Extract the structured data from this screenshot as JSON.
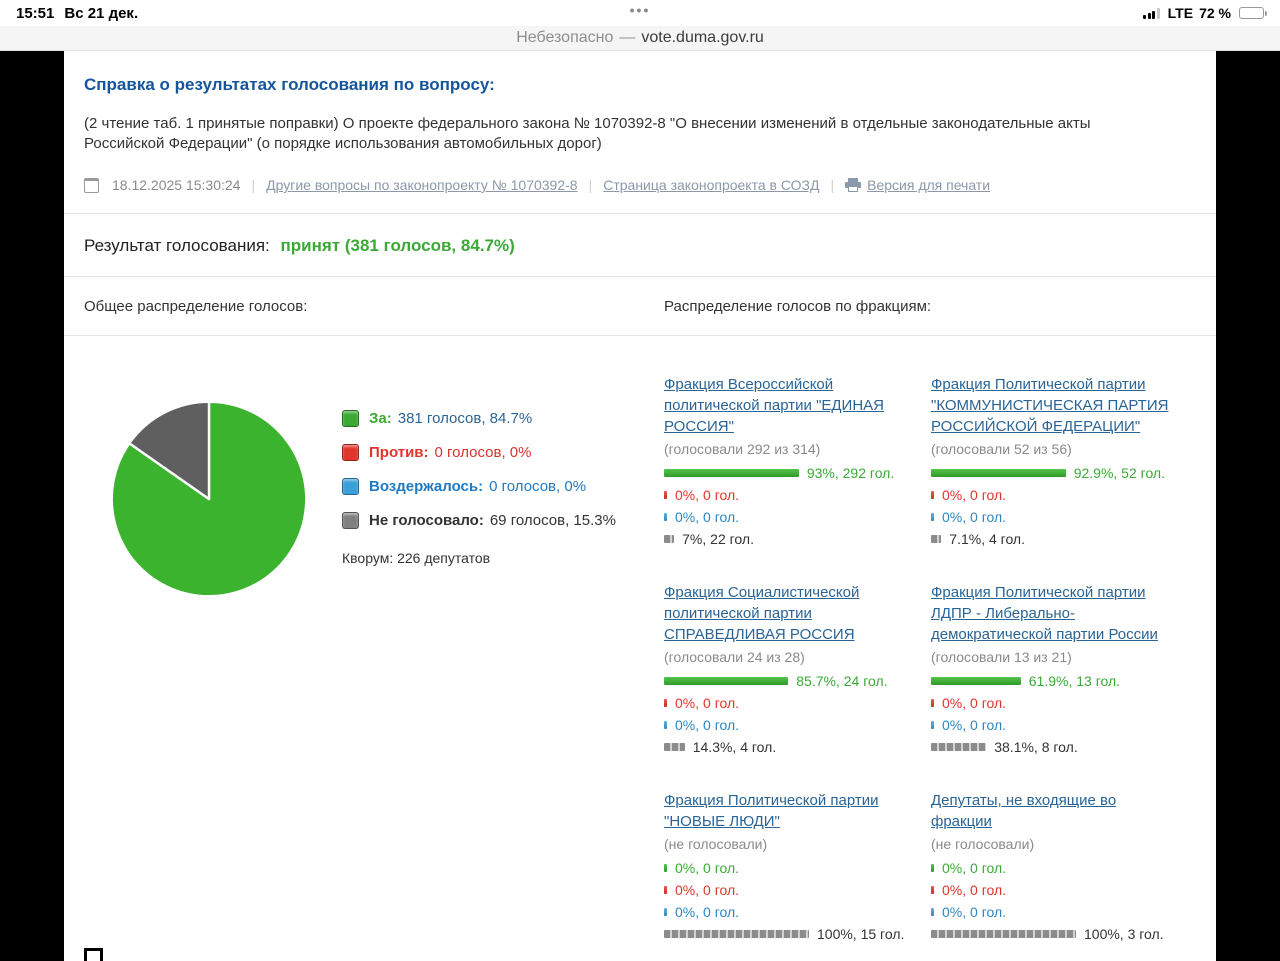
{
  "status": {
    "time": "15:51",
    "date": "Вс 21 дек.",
    "handle": "•••",
    "network": "LTE",
    "battery": "72 %"
  },
  "browser": {
    "security_label": "Небезопасно",
    "separator": "—",
    "domain": "vote.duma.gov.ru"
  },
  "page": {
    "title": "Справка о результатах голосования по вопросу:",
    "question": "(2 чтение таб. 1 принятые поправки) О проекте федерального закона № 1070392-8 \"О внесении изменений в отдельные законодательные акты Российской Федерации\" (о порядке использования автомобильных дорог)",
    "meta": {
      "datetime": "18.12.2025 15:30:24",
      "links": [
        {
          "label": "Другие вопросы по законопроекту № 1070392-8"
        },
        {
          "label": "Страница законопроекта в СОЗД"
        },
        {
          "label": "Версия для печати"
        }
      ]
    },
    "result": {
      "label": "Результат голосования:",
      "value": "принят (381 голосов, 84.7%)"
    },
    "overall": {
      "heading": "Общее распределение голосов:",
      "legend": [
        {
          "label": "За:",
          "value": "381 голосов, 84.7%",
          "swatch": "#3aaa35",
          "label_color": "#3aaa35",
          "value_color": "#2a6496"
        },
        {
          "label": "Против:",
          "value": "0 голосов, 0%",
          "swatch": "#e0352b",
          "label_color": "#e0352b",
          "value_color": "#d9342b"
        },
        {
          "label": "Воздержалось:",
          "value": "0 голосов, 0%",
          "swatch": "#3b9fd8",
          "label_color": "#1f7ac4",
          "value_color": "#1f7ac4"
        },
        {
          "label": "Не голосовало:",
          "value": "69 голосов, 15.3%",
          "swatch": "#808080",
          "label_color": "#333333",
          "value_color": "#333333"
        }
      ],
      "quorum": "Кворум: 226 депутатов"
    },
    "fractions": {
      "heading": "Распределение голосов по фракциям:",
      "items": [
        {
          "name": "Фракция Всероссийской политической партии \"ЕДИНАЯ РОССИЯ\"",
          "turnout": "(голосовали 292 из 314)",
          "bars": [
            {
              "type": "for",
              "pct": 93,
              "label": "93%, 292 гол."
            },
            {
              "type": "against",
              "pct": 0,
              "label": "0%, 0 гол."
            },
            {
              "type": "abstain",
              "pct": 0,
              "label": "0%, 0 гол."
            },
            {
              "type": "novote",
              "pct": 7,
              "label": "7%, 22 гол."
            }
          ]
        },
        {
          "name": "Фракция Политической партии \"КОММУНИСТИЧЕСКАЯ ПАРТИЯ РОССИЙСКОЙ ФЕДЕРАЦИИ\"",
          "turnout": "(голосовали 52 из 56)",
          "bars": [
            {
              "type": "for",
              "pct": 92.9,
              "label": "92.9%, 52 гол."
            },
            {
              "type": "against",
              "pct": 0,
              "label": "0%, 0 гол."
            },
            {
              "type": "abstain",
              "pct": 0,
              "label": "0%, 0 гол."
            },
            {
              "type": "novote",
              "pct": 7.1,
              "label": "7.1%, 4 гол."
            }
          ]
        },
        {
          "name": "Фракция Социалистической политической партии СПРАВЕДЛИВАЯ РОССИЯ",
          "turnout": "(голосовали 24 из 28)",
          "bars": [
            {
              "type": "for",
              "pct": 85.7,
              "label": "85.7%, 24 гол."
            },
            {
              "type": "against",
              "pct": 0,
              "label": "0%, 0 гол."
            },
            {
              "type": "abstain",
              "pct": 0,
              "label": "0%, 0 гол."
            },
            {
              "type": "novote",
              "pct": 14.3,
              "label": "14.3%, 4 гол."
            }
          ]
        },
        {
          "name": "Фракция Политической партии ЛДПР - Либерально-демократической партии России",
          "turnout": "(голосовали 13 из 21)",
          "bars": [
            {
              "type": "for",
              "pct": 61.9,
              "label": "61.9%, 13 гол."
            },
            {
              "type": "against",
              "pct": 0,
              "label": "0%, 0 гол."
            },
            {
              "type": "abstain",
              "pct": 0,
              "label": "0%, 0 гол."
            },
            {
              "type": "novote",
              "pct": 38.1,
              "label": "38.1%, 8 гол."
            }
          ]
        },
        {
          "name": "Фракция Политической партии \"НОВЫЕ ЛЮДИ\"",
          "turnout": "(не голосовали)",
          "bars": [
            {
              "type": "for",
              "pct": 0,
              "label": "0%, 0 гол."
            },
            {
              "type": "against",
              "pct": 0,
              "label": "0%, 0 гол."
            },
            {
              "type": "abstain",
              "pct": 0,
              "label": "0%, 0 гол."
            },
            {
              "type": "novote",
              "pct": 100,
              "label": "100%, 15 гол."
            }
          ]
        },
        {
          "name": "Депутаты, не входящие во фракции",
          "turnout": "(не голосовали)",
          "bars": [
            {
              "type": "for",
              "pct": 0,
              "label": "0%, 0 гол."
            },
            {
              "type": "against",
              "pct": 0,
              "label": "0%, 0 гол."
            },
            {
              "type": "abstain",
              "pct": 0,
              "label": "0%, 0 гол."
            },
            {
              "type": "novote",
              "pct": 100,
              "label": "100%, 3 гол."
            }
          ]
        }
      ]
    }
  },
  "chart_data": [
    {
      "type": "pie",
      "title": "Общее распределение голосов",
      "labels": [
        "За",
        "Против",
        "Воздержалось",
        "Не голосовало"
      ],
      "values_pct": [
        84.7,
        0,
        0,
        15.3
      ],
      "values_votes": [
        381,
        0,
        0,
        69
      ],
      "colors": [
        "#3aaa35",
        "#e0352b",
        "#3b9fd8",
        "#6e6e6e"
      ],
      "quorum": 226
    },
    {
      "type": "bar",
      "title": "Распределение голосов по фракциям",
      "categories": [
        "Фракция Всероссийской политической партии \"ЕДИНАЯ РОССИЯ\"",
        "Фракция Политической партии \"КОММУНИСТИЧЕСКАЯ ПАРТИЯ РОССИЙСКОЙ ФЕДЕРАЦИИ\"",
        "Фракция Социалистической политической партии СПРАВЕДЛИВАЯ РОССИЯ",
        "Фракция Политической партии ЛДПР - Либерально-демократической партии России",
        "Фракция Политической партии \"НОВЫЕ ЛЮДИ\"",
        "Депутаты, не входящие во фракции"
      ],
      "series": [
        {
          "name": "За",
          "values_pct": [
            93,
            92.9,
            85.7,
            61.9,
            0,
            0
          ],
          "values_votes": [
            292,
            52,
            24,
            13,
            0,
            0
          ]
        },
        {
          "name": "Против",
          "values_pct": [
            0,
            0,
            0,
            0,
            0,
            0
          ],
          "values_votes": [
            0,
            0,
            0,
            0,
            0,
            0
          ]
        },
        {
          "name": "Воздержалось",
          "values_pct": [
            0,
            0,
            0,
            0,
            0,
            0
          ],
          "values_votes": [
            0,
            0,
            0,
            0,
            0,
            0
          ]
        },
        {
          "name": "Не голосовало",
          "values_pct": [
            7,
            7.1,
            14.3,
            38.1,
            100,
            100
          ],
          "values_votes": [
            22,
            4,
            4,
            8,
            15,
            3
          ]
        }
      ]
    }
  ]
}
